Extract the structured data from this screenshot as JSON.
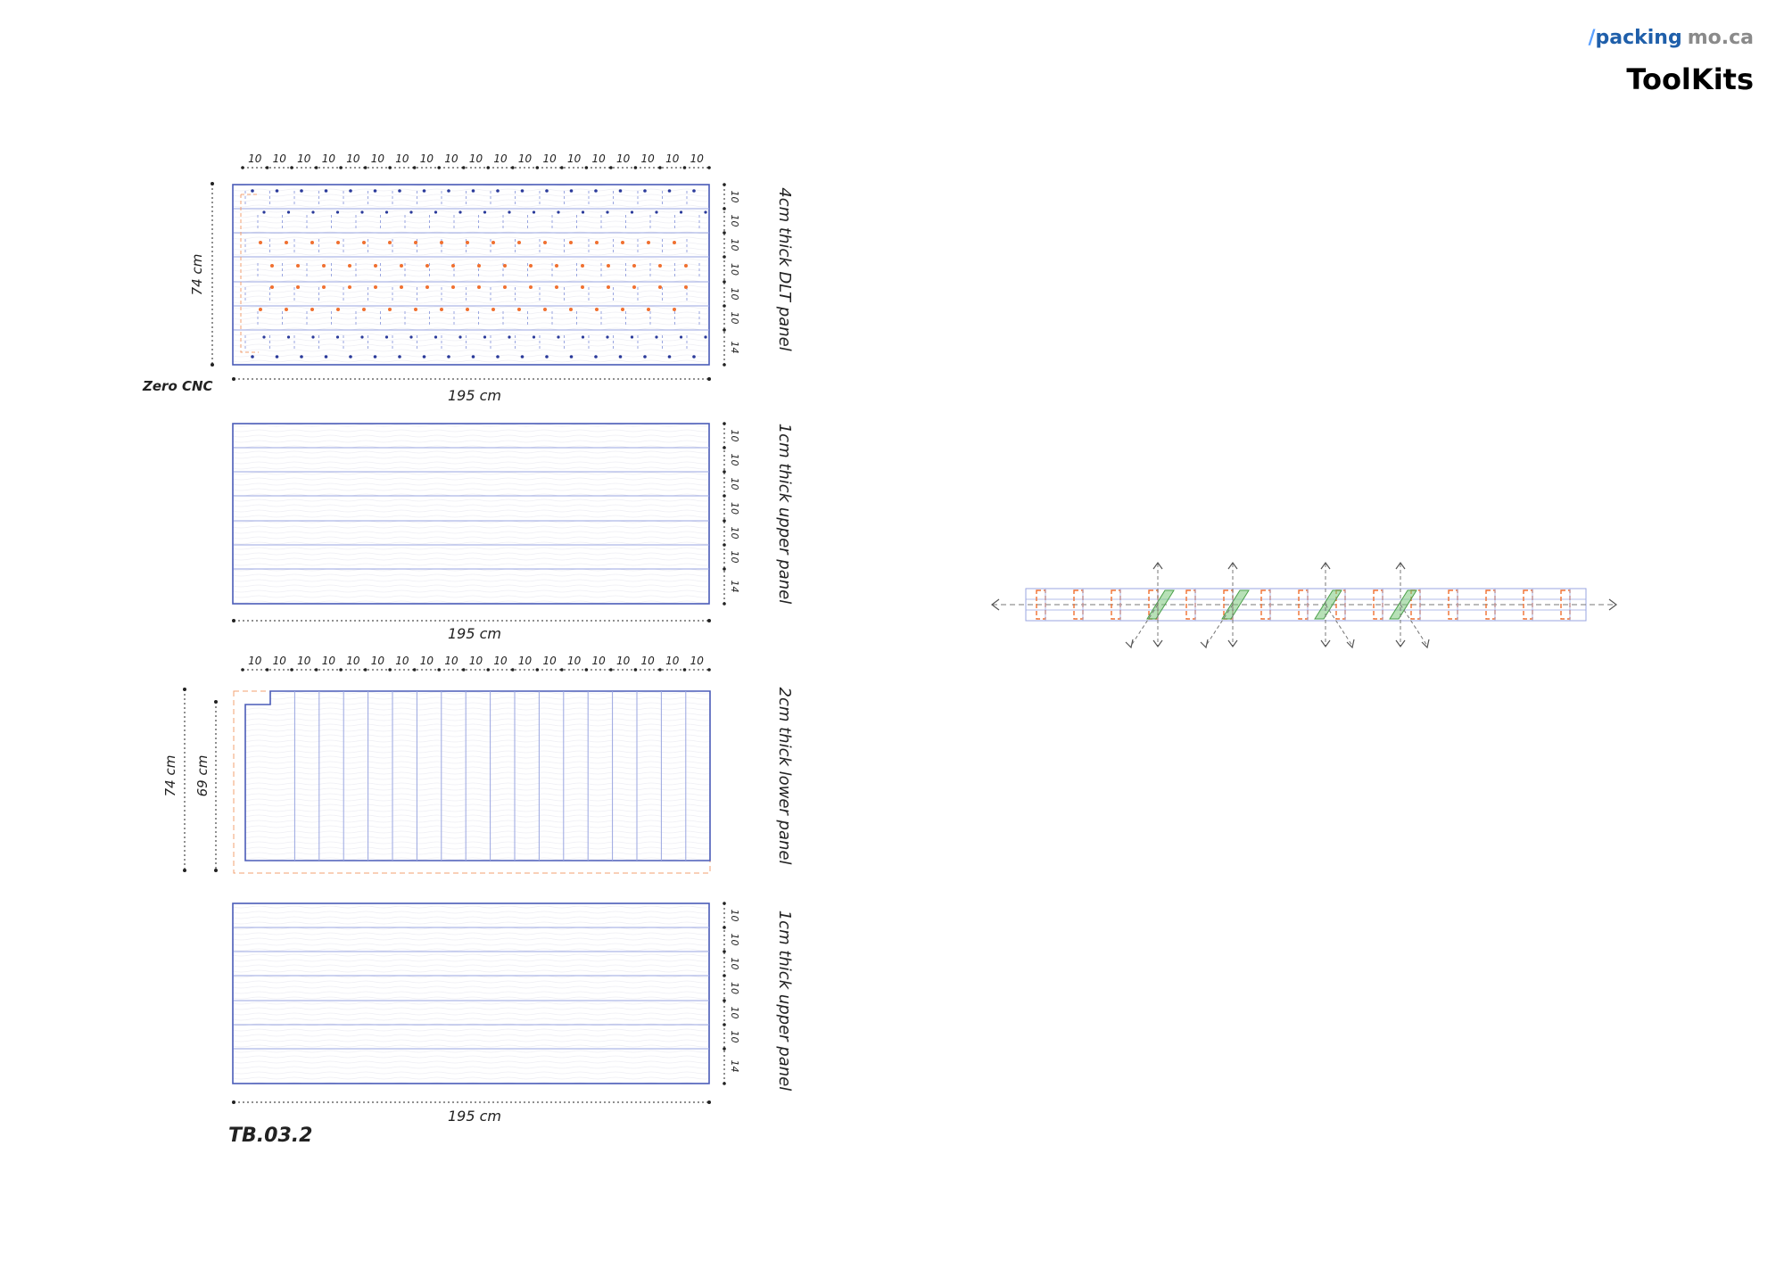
{
  "brand": {
    "slash": "/",
    "packing": "packing",
    "moca": "mo.ca"
  },
  "title": "ToolKits",
  "sheet_id": "TB.03.2",
  "zero_label": "Zero CNC",
  "panels": [
    {
      "label": "4cm thick DLT panel",
      "width": "195 cm",
      "height": "74 cm",
      "top_dims": [
        "10",
        "10",
        "10",
        "10",
        "10",
        "10",
        "10",
        "10",
        "10",
        "10",
        "10",
        "10",
        "10",
        "10",
        "10",
        "10",
        "10",
        "10",
        "10"
      ],
      "side_dims": [
        "10",
        "10",
        "10",
        "10",
        "10",
        "10",
        "14"
      ]
    },
    {
      "label": "1cm thick upper panel",
      "width": "195 cm",
      "side_dims": [
        "10",
        "10",
        "10",
        "10",
        "10",
        "10",
        "14"
      ]
    },
    {
      "label": "2cm thick lower panel",
      "height_outer": "74 cm",
      "height_inner": "69 cm",
      "top_dims": [
        "10",
        "10",
        "10",
        "10",
        "10",
        "10",
        "10",
        "10",
        "10",
        "10",
        "10",
        "10",
        "10",
        "10",
        "10",
        "10",
        "10",
        "10",
        "10"
      ]
    },
    {
      "label": "1cm thick upper panel",
      "width": "195 cm",
      "side_dims": [
        "10",
        "10",
        "10",
        "10",
        "10",
        "10",
        "14"
      ]
    }
  ],
  "colors": {
    "panel_stroke": "#4a5bb8",
    "grid": "#9aa6e0",
    "orange": "#f07030",
    "green": "#7cc87c",
    "blue_dot": "#2a3a9a",
    "dim": "#222222"
  }
}
